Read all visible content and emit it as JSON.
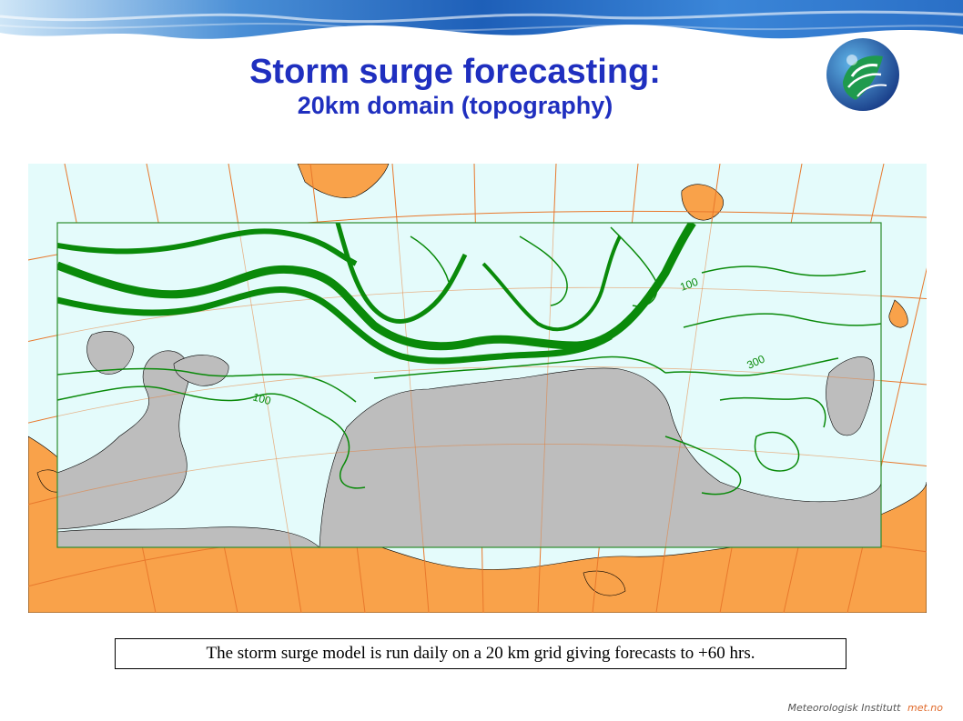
{
  "slide": {
    "title": "Storm surge forecasting:",
    "subtitle": "20km domain (topography)",
    "caption": "The storm surge model is run daily on a 20 km grid giving forecasts to +60 hrs.",
    "footer_org": "Meteorologisk Institutt",
    "footer_brand": "met.no"
  },
  "map": {
    "contour_labels": [
      "100",
      "300",
      "100"
    ],
    "colors": {
      "ocean": "#e4fbfb",
      "land_outside": "#f9a24a",
      "land_inside": "#bdbdbd",
      "contour": "#0a8a0a",
      "graticule": "#e8782c",
      "domain_border": "#2c8c2c"
    }
  }
}
